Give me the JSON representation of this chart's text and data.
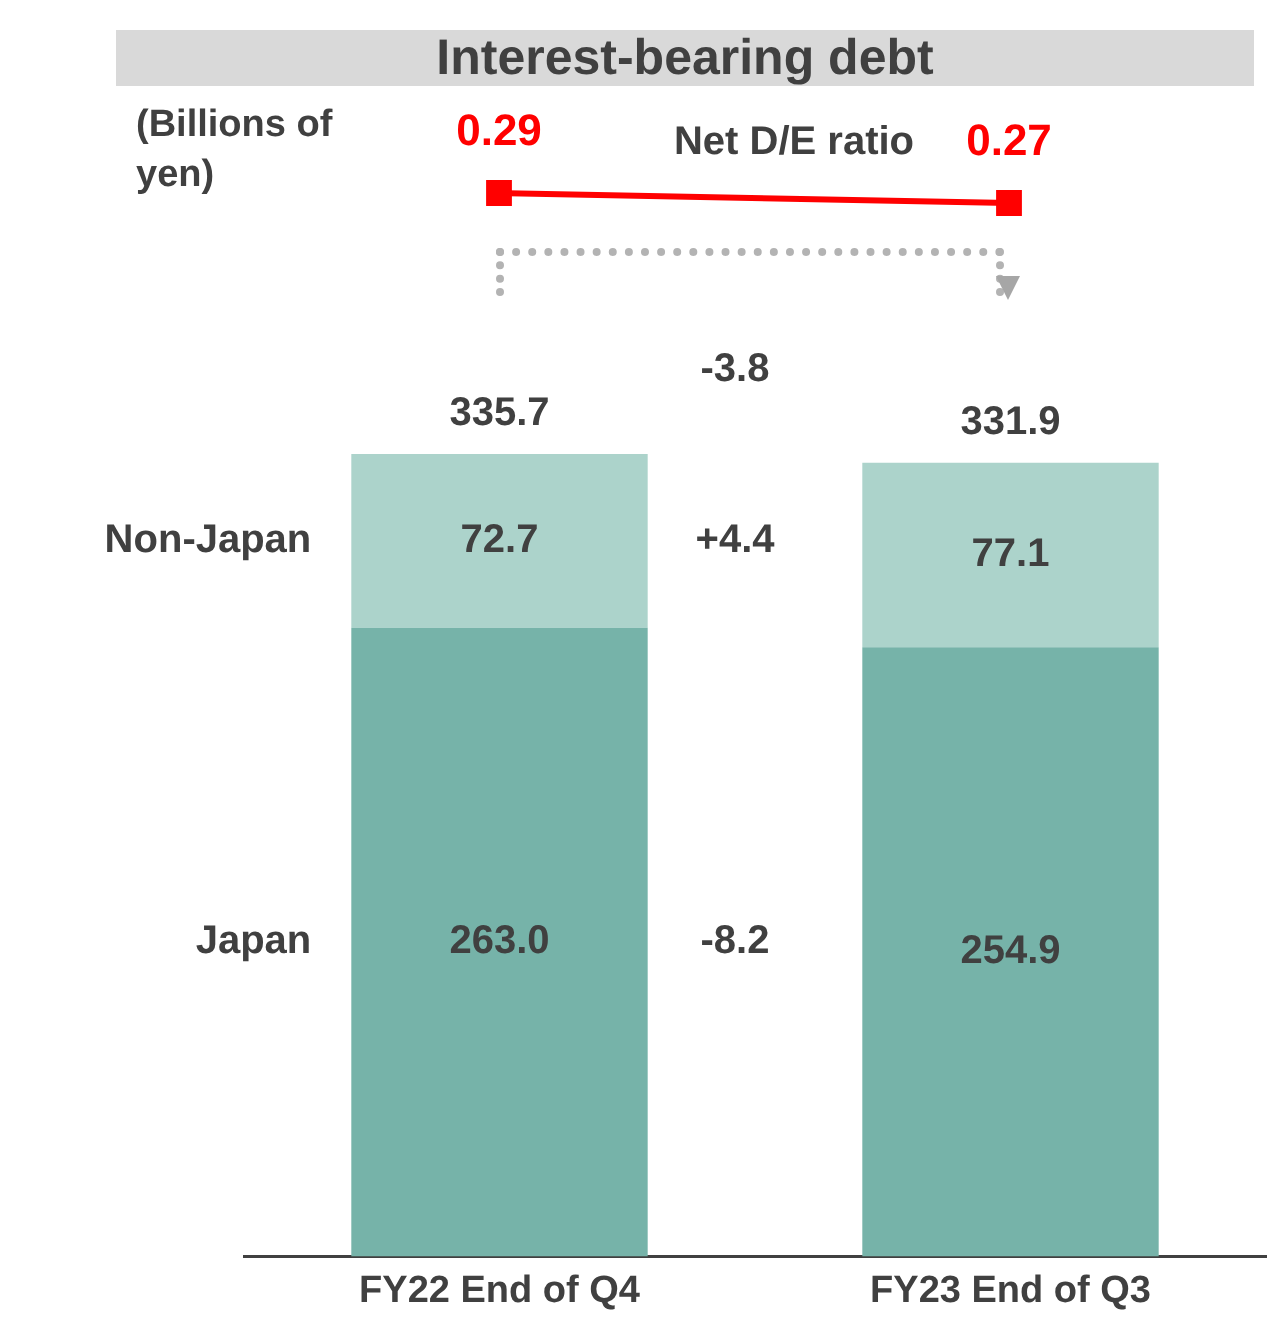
{
  "chart_data": [
    {
      "type": "line",
      "title": "Interest-bearing debt",
      "categories": [
        null,
        null
      ],
      "tick_labels": false,
      "series": [
        {
          "name": "Net D/E ratio",
          "color": "#ff0000",
          "marker": "square",
          "values": [
            0.29,
            0.27
          ],
          "value_labels": [
            "0.29",
            "0.27"
          ]
        }
      ],
      "annotations": [
        "(Billions of yen)"
      ],
      "legend": false,
      "grid": false
    },
    {
      "type": "bar",
      "categories": [
        "FY22 End of Q4",
        "FY23 End of Q3"
      ],
      "stacked": true,
      "series": [
        {
          "name": "Japan",
          "color": "#76b3a9",
          "values": [
            263.0,
            254.9
          ],
          "value_labels": [
            "263.0",
            "254.9"
          ]
        },
        {
          "name": "Non-Japan",
          "color": "#acd3cb",
          "values": [
            72.7,
            77.1
          ],
          "value_labels": [
            "72.7",
            "77.1"
          ]
        }
      ],
      "totals": [
        "335.7",
        "331.9"
      ],
      "annotations": [
        "-3.8",
        "+4.4",
        "-8.2"
      ],
      "legend": false,
      "grid": false
    }
  ]
}
